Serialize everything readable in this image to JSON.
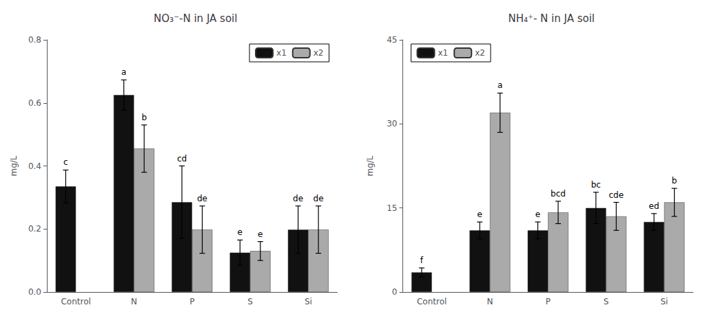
{
  "chart_data": [
    {
      "type": "bar",
      "title": "NO₃⁻-N in JA soil",
      "categories": [
        "Control",
        "N",
        "P",
        "S",
        "Si"
      ],
      "series": [
        {
          "name": "x1",
          "color": "#111111",
          "values": [
            0.335,
            0.625,
            0.285,
            0.125,
            0.198
          ],
          "errors": [
            0.052,
            0.048,
            0.115,
            0.04,
            0.075
          ],
          "labels": [
            "c",
            "a",
            "cd",
            "e",
            "de"
          ]
        },
        {
          "name": "x2",
          "color": "#aaaaaa",
          "values": [
            null,
            0.455,
            0.198,
            0.13,
            0.198
          ],
          "errors": [
            null,
            0.075,
            0.075,
            0.03,
            0.075
          ],
          "labels": [
            null,
            "b",
            "de",
            "e",
            "de"
          ]
        }
      ],
      "ylabel": "mg/L",
      "ylim": [
        0.0,
        0.8
      ],
      "yticks": [
        {
          "value": 0.0,
          "label": "0.0"
        },
        0.2,
        0.4,
        0.6,
        0.8
      ],
      "legend": "upper right"
    },
    {
      "type": "bar",
      "title": "NH₄⁺- N in JA soil",
      "categories": [
        "Control",
        "N",
        "P",
        "S",
        "Si"
      ],
      "series": [
        {
          "name": "x1",
          "color": "#111111",
          "values": [
            3.5,
            11.0,
            11.0,
            15.0,
            12.5
          ],
          "errors": [
            0.8,
            1.5,
            1.5,
            2.8,
            1.5
          ],
          "labels": [
            "f",
            "e",
            "e",
            "bc",
            "ed"
          ]
        },
        {
          "name": "x2",
          "color": "#aaaaaa",
          "values": [
            null,
            32.0,
            14.2,
            13.5,
            16.0
          ],
          "errors": [
            null,
            3.5,
            2.0,
            2.5,
            2.5
          ],
          "labels": [
            null,
            "a",
            "bcd",
            "cde",
            "b"
          ]
        }
      ],
      "ylabel": "mg/L",
      "ylim": [
        0,
        45
      ],
      "yticks": [
        0,
        15,
        30,
        45
      ],
      "legend": "upper left"
    }
  ]
}
